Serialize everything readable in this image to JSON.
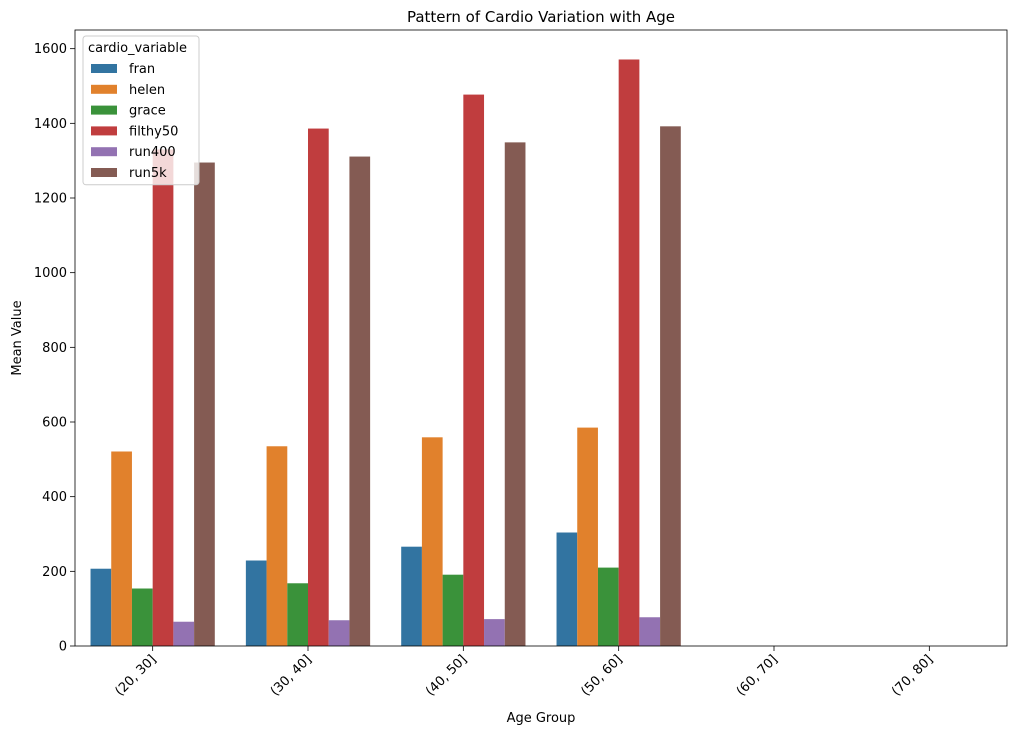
{
  "chart_data": {
    "type": "bar",
    "title": "Pattern of Cardio Variation with Age",
    "xlabel": "Age Group",
    "ylabel": "Mean Value",
    "categories": [
      "(20, 30]",
      "(30, 40]",
      "(40, 50]",
      "(50, 60]",
      "(60, 70]",
      "(70, 80]"
    ],
    "ylim": [
      0,
      1650
    ],
    "yticks": [
      0,
      200,
      400,
      600,
      800,
      1000,
      1200,
      1400,
      1600
    ],
    "grid": false,
    "legend": {
      "title": "cardio_variable",
      "placement": "top-left"
    },
    "series": [
      {
        "name": "fran",
        "color": "#3274a1",
        "values": [
          207,
          229,
          266,
          304,
          null,
          null
        ]
      },
      {
        "name": "helen",
        "color": "#e1812c",
        "values": [
          521,
          535,
          559,
          585,
          null,
          null
        ]
      },
      {
        "name": "grace",
        "color": "#3a923a",
        "values": [
          154,
          168,
          191,
          210,
          null,
          null
        ]
      },
      {
        "name": "filthy50",
        "color": "#c03d3e",
        "values": [
          1330,
          1386,
          1477,
          1571,
          null,
          null
        ]
      },
      {
        "name": "run400",
        "color": "#9372b2",
        "values": [
          65,
          69,
          72,
          77,
          null,
          null
        ]
      },
      {
        "name": "run5k",
        "color": "#845b53",
        "values": [
          1295,
          1311,
          1349,
          1392,
          null,
          null
        ]
      }
    ]
  }
}
